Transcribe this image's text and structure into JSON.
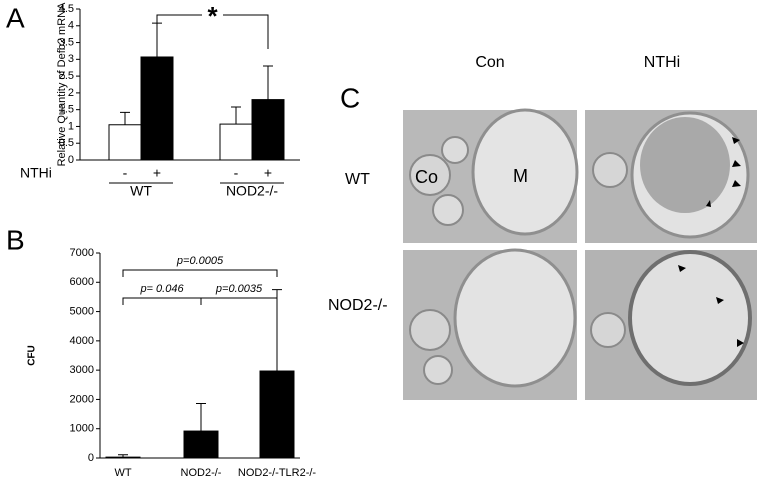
{
  "chart_data": [
    {
      "type": "bar",
      "panel_label": "A",
      "y_label": "Relative Quantity of Defb2 mRNA",
      "x_label": "NTHi",
      "categories": [
        "WT",
        "NOD2-/-"
      ],
      "series": [
        {
          "name": "-",
          "color": "#ffffff",
          "values": [
            1.05,
            1.07
          ],
          "errors": [
            0.37,
            0.51
          ]
        },
        {
          "name": "+",
          "color": "#000000",
          "values": [
            3.07,
            1.8
          ],
          "errors": [
            1.01,
            1.0
          ]
        }
      ],
      "annotation": "*",
      "ylim": [
        0,
        4.5
      ],
      "yticks": [
        0,
        0.5,
        1,
        1.5,
        2,
        2.5,
        3,
        3.5,
        4,
        4.5
      ]
    },
    {
      "type": "bar",
      "panel_label": "B",
      "y_label": "CFU",
      "categories": [
        "WT",
        "NOD2-/-",
        "NOD2-/-TLR2-/-"
      ],
      "values": [
        30,
        920,
        2970
      ],
      "errors": [
        80,
        940,
        2780
      ],
      "color": "#000000",
      "annotations": [
        "p= 0.046",
        "p=0.0035",
        "p=0.0005"
      ],
      "ylim": [
        0,
        7000
      ],
      "yticks": [
        0,
        1000,
        2000,
        3000,
        4000,
        5000,
        6000,
        7000
      ]
    }
  ],
  "panel_c": {
    "panel_label": "C",
    "columns": [
      "Con",
      "NTHi"
    ],
    "rows": [
      "WT",
      "NOD2-/-"
    ],
    "labels": [
      "Co",
      "M"
    ]
  }
}
